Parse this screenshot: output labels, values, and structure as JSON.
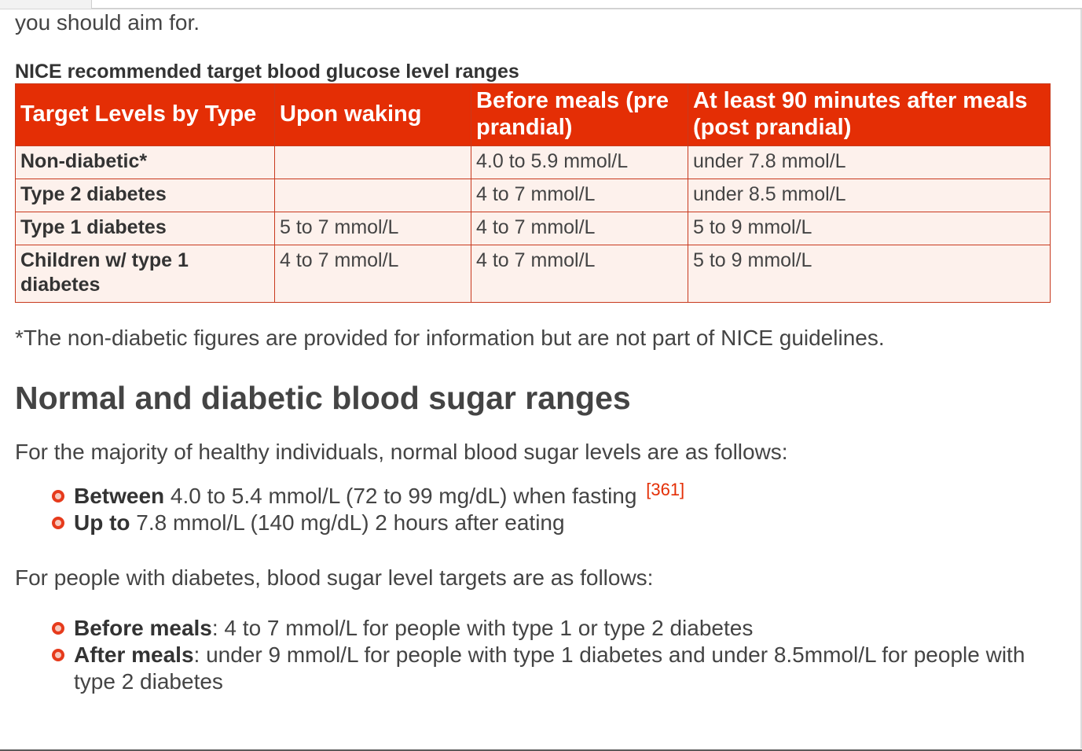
{
  "intro_tail": "you should aim for.",
  "table": {
    "caption": "NICE recommended target blood glucose level ranges",
    "headers": [
      "Target Levels by Type",
      "Upon waking",
      "Before meals (pre prandial)",
      "At least 90 minutes after meals (post prandial)"
    ],
    "rows": [
      [
        "Non-diabetic*",
        "",
        "4.0 to 5.9 mmol/L",
        "under 7.8 mmol/L"
      ],
      [
        "Type 2 diabetes",
        "",
        "4 to 7 mmol/L",
        "under 8.5 mmol/L"
      ],
      [
        "Type 1 diabetes",
        "5 to 7 mmol/L",
        "4 to 7 mmol/L",
        "5 to 9 mmol/L"
      ],
      [
        "Children w/ type 1 diabetes",
        "4 to 7 mmol/L",
        "4 to 7 mmol/L",
        "5 to 9 mmol/L"
      ]
    ]
  },
  "footnote": "*The non-diabetic figures are provided for information but are not part of NICE guidelines.",
  "section": {
    "heading": "Normal and diabetic blood sugar ranges",
    "para1": "For the majority of healthy individuals, normal blood sugar levels are as follows:",
    "list1": [
      {
        "bold": "Between",
        "text": " 4.0 to 5.4 mmol/L (72 to 99 mg/dL) when fasting",
        "ref": "[361]"
      },
      {
        "bold": "Up to",
        "text": " 7.8 mmol/L (140 mg/dL) 2 hours after eating",
        "ref": ""
      }
    ],
    "para2": "For people with diabetes, blood sugar level targets are as follows:",
    "list2": [
      {
        "bold": "Before meals",
        "text": ": 4 to 7 mmol/L for people with type 1 or type 2 diabetes"
      },
      {
        "bold": "After meals",
        "text": ": under 9 mmol/L for people with type 1 diabetes and under 8.5mmol/L for people with type 2 diabetes"
      }
    ]
  }
}
